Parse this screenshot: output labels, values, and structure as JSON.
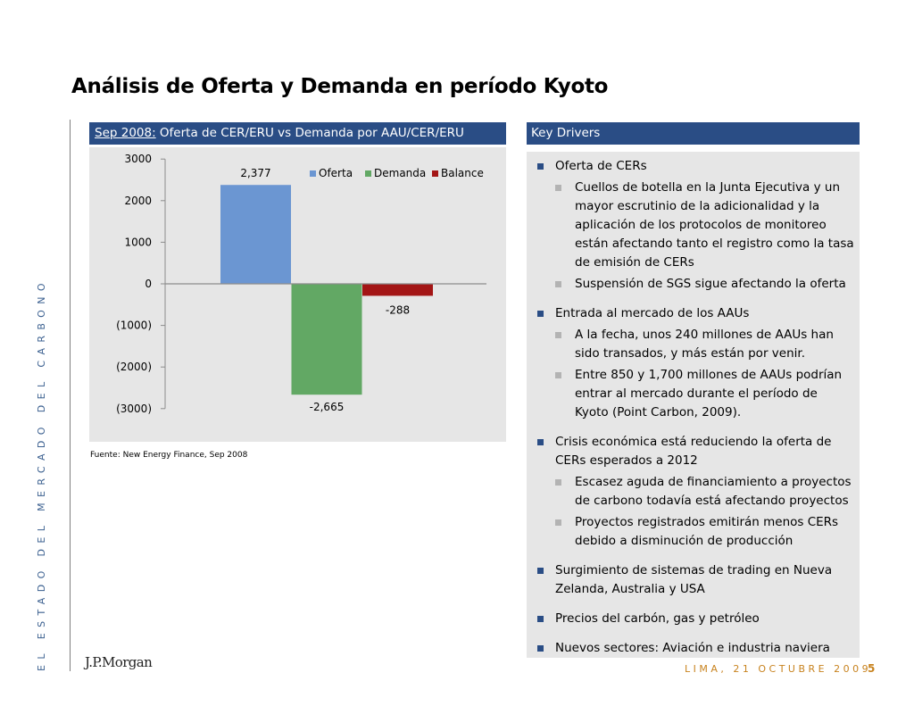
{
  "slide": {
    "title": "Análisis de Oferta y Demanda en período Kyoto",
    "side_text": "EL ESTADO DEL MERCADO DEL CARBONO",
    "logo_text": "J.P.Morgan",
    "footer_date": "LIMA, 21 OCTUBRE 2009",
    "page_number": "5",
    "accent_color": "#2a4d85",
    "footer_color": "#c8831f"
  },
  "chart_panel": {
    "header_date": "Sep 2008:",
    "header_text": " Oferta de CER/ERU vs Demanda por AAU/CER/ERU",
    "source": "Fuente: New Energy Finance, Sep 2008"
  },
  "chart_data": {
    "type": "bar",
    "categories": [
      "Oferta",
      "Demanda",
      "Balance"
    ],
    "values": [
      2377,
      -2665,
      -288
    ],
    "data_labels": [
      "2,377",
      "-2,665",
      "-288"
    ],
    "colors": [
      "#6b96d2",
      "#62a864",
      "#a31515"
    ],
    "yticks": [
      3000,
      2000,
      1000,
      0,
      -1000,
      -2000,
      -3000
    ],
    "ytick_labels": [
      "3000",
      "2000",
      "1000",
      "0",
      "(1000)",
      "(2000)",
      "(3000)"
    ],
    "ylim": [
      -3000,
      3000
    ],
    "legend": [
      "Oferta",
      "Demanda",
      "Balance"
    ],
    "legend_position": "top-right",
    "grid": false
  },
  "drivers": {
    "header": "Key Drivers",
    "items": [
      {
        "text": "Oferta de CERs",
        "subs": [
          "Cuellos de botella en la Junta Ejecutiva y un mayor escrutinio de la adicionalidad y la aplicación de los protocolos de monitoreo están afectando tanto el registro como la tasa de emisión de CERs",
          "Suspensión de SGS sigue afectando la oferta"
        ]
      },
      {
        "text": "Entrada al mercado de los AAUs",
        "subs": [
          "A la fecha, unos 240 millones de AAUs han sido transados, y más están por venir.",
          "Entre 850 y 1,700 millones de AAUs podrían entrar al mercado durante el período de Kyoto (Point Carbon, 2009)."
        ]
      },
      {
        "text": "Crisis económica está reduciendo la oferta de CERs esperados a 2012",
        "subs": [
          "Escasez aguda de financiamiento a proyectos de carbono todavía está afectando proyectos",
          "Proyectos registrados emitirán menos CERs debido a disminución de producción"
        ]
      },
      {
        "text": "Surgimiento de sistemas de trading en Nueva Zelanda, Australia y USA",
        "subs": []
      },
      {
        "text": "Precios del carbón, gas y petróleo",
        "subs": []
      },
      {
        "text": "Nuevos sectores: Aviación e industria naviera",
        "subs": []
      }
    ]
  }
}
